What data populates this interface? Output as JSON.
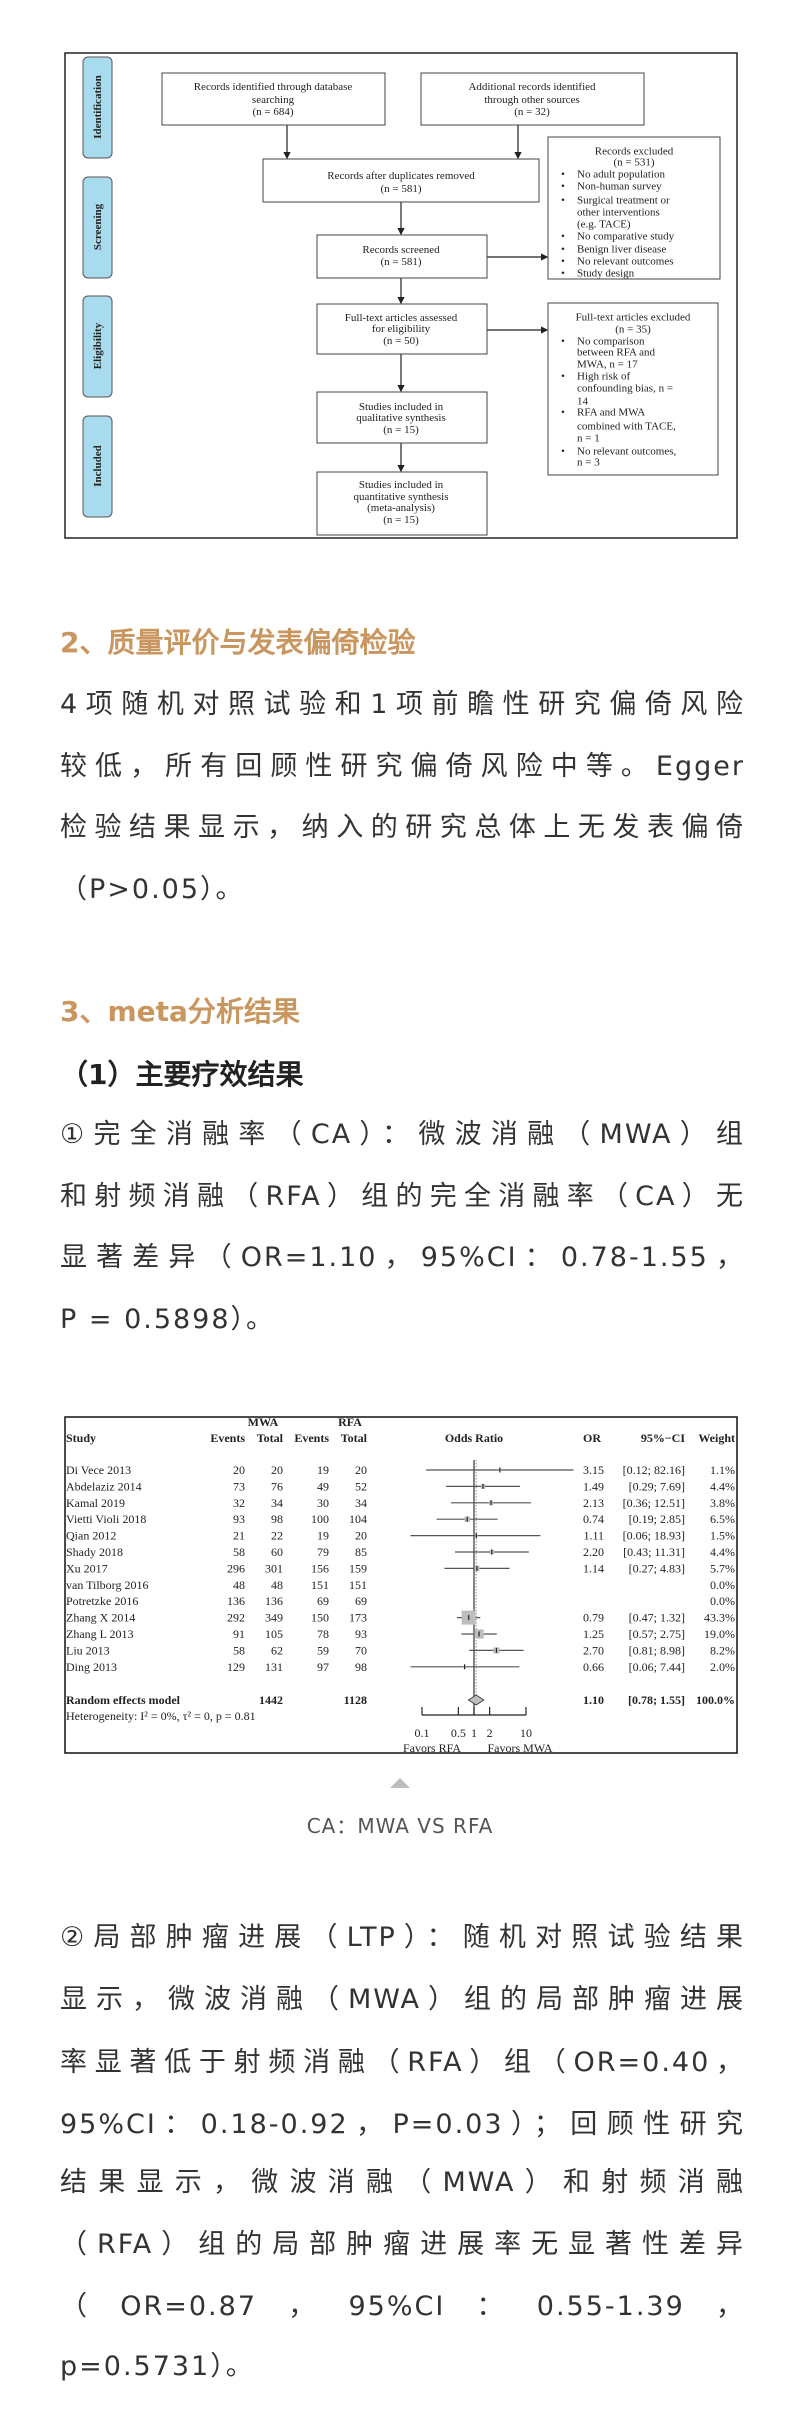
{
  "flowchart": {
    "stages": [
      "Identification",
      "Screening",
      "Eligibility",
      "Included"
    ],
    "db_search": [
      "Records identified through database",
      "searching",
      "(n = 684)"
    ],
    "other_sources": [
      "Additional records identified",
      "through other sources",
      "(n = 32)"
    ],
    "duplicates_removed": [
      "Records after duplicates removed",
      "(n = 581)"
    ],
    "screened": [
      "Records screened",
      "(n = 581)"
    ],
    "records_excluded": {
      "title": [
        "Records excluded",
        "(n = 531)"
      ],
      "items": [
        [
          "No adult population"
        ],
        [
          "Non-human survey"
        ],
        [
          "Surgical treatment or",
          "other interventions",
          "(e.g. TACE)"
        ],
        [
          "No comparative study"
        ],
        [
          "Benign liver disease"
        ],
        [
          "No relevant outcomes"
        ],
        [
          "Study design"
        ]
      ]
    },
    "fulltext_assessed": [
      "Full-text articles assessed",
      "for eligibility",
      "(n = 50)"
    ],
    "fulltext_excluded": {
      "title": [
        "Full-text articles excluded",
        "(n = 35)"
      ],
      "items": [
        [
          "No comparison",
          "between RFA and",
          "MWA, n = 17"
        ],
        [
          "High risk of",
          "confounding bias, n =",
          "14"
        ],
        [
          "RFA and MWA",
          "combined with TACE,",
          "n = 1"
        ],
        [
          "No relevant outcomes,",
          "n = 3"
        ]
      ]
    },
    "qualitative": [
      "Studies included in",
      "qualitative synthesis",
      "(n = 15)"
    ],
    "quantitative": [
      "Studies included in",
      "quantitative synthesis",
      "(meta-analysis)",
      "(n = 15)"
    ],
    "bullet": "•",
    "stage_color": "#a9dbef"
  },
  "section2": {
    "heading": "2、质量评价与发表偏倚检验",
    "lines": [
      "4项随机对照试验和1项前瞻性研究偏倚风险",
      "较低，所有回顾性研究偏倚风险中等。Egger",
      "检验结果显示，纳入的研究总体上无发表偏倚",
      "（P>0.05）。"
    ]
  },
  "section3": {
    "heading": "3、meta分析结果",
    "subheading": "（1）主要疗效结果",
    "ca_lines": [
      "①完全消融率（CA）：微波消融（MWA）组",
      "和射频消融（RFA）组的完全消融率（CA）无",
      "显著差异（OR=1.10，95%CI：0.78-1.55，",
      "P = 0.5898）。"
    ],
    "caption": "CA：MWA VS RFA",
    "ltp_lines": [
      "②局部肿瘤进展（LTP）：随机对照试验结果",
      "显示，微波消融（MWA）组的局部肿瘤进展",
      "率显著低于射频消融（RFA）组（OR=0.40，",
      "95%CI：0.18-0.92，P=0.03）；回顾性研究",
      "结果显示，微波消融（MWA）和射频消融",
      "（RFA）组的局部肿瘤进展率无显著性差异",
      "（OR=0.87，95%CI：0.55-1.39，",
      "p=0.5731）。"
    ]
  },
  "colors": {
    "heading": "#c9965f",
    "body": "#333333",
    "square": "#bdbdbd"
  },
  "chart_data": {
    "type": "table",
    "headers": {
      "group1": "MWA",
      "group2": "RFA",
      "study": "Study",
      "events": "Events",
      "total": "Total",
      "plot": "Odds Ratio",
      "or": "OR",
      "ci": "95%−CI",
      "weight": "Weight"
    },
    "studies": [
      {
        "study": "Di Vece  2013",
        "e1": 20,
        "n1": 20,
        "e2": 19,
        "n2": 20,
        "or": 3.15,
        "lo": 0.12,
        "hi": 82.16,
        "or_text": "3.15",
        "ci_text": "[0.12; 82.16]",
        "weight": "1.1%"
      },
      {
        "study": "Abdelaziz  2014",
        "e1": 73,
        "n1": 76,
        "e2": 49,
        "n2": 52,
        "or": 1.49,
        "lo": 0.29,
        "hi": 7.69,
        "or_text": "1.49",
        "ci_text": "[0.29;  7.69]",
        "weight": "4.4%"
      },
      {
        "study": "Kamal  2019",
        "e1": 32,
        "n1": 34,
        "e2": 30,
        "n2": 34,
        "or": 2.13,
        "lo": 0.36,
        "hi": 12.51,
        "or_text": "2.13",
        "ci_text": "[0.36; 12.51]",
        "weight": "3.8%"
      },
      {
        "study": "Vietti  Violi  2018",
        "e1": 93,
        "n1": 98,
        "e2": 100,
        "n2": 104,
        "or": 0.74,
        "lo": 0.19,
        "hi": 2.85,
        "or_text": "0.74",
        "ci_text": "[0.19;  2.85]",
        "weight": "6.5%"
      },
      {
        "study": "Qian  2012",
        "e1": 21,
        "n1": 22,
        "e2": 19,
        "n2": 20,
        "or": 1.11,
        "lo": 0.06,
        "hi": 18.93,
        "or_text": "1.11",
        "ci_text": "[0.06; 18.93]",
        "weight": "1.5%"
      },
      {
        "study": "Shady  2018",
        "e1": 58,
        "n1": 60,
        "e2": 79,
        "n2": 85,
        "or": 2.2,
        "lo": 0.43,
        "hi": 11.31,
        "or_text": "2.20",
        "ci_text": "[0.43; 11.31]",
        "weight": "4.4%"
      },
      {
        "study": "Xu  2017",
        "e1": 296,
        "n1": 301,
        "e2": 156,
        "n2": 159,
        "or": 1.14,
        "lo": 0.27,
        "hi": 4.83,
        "or_text": "1.14",
        "ci_text": "[0.27;  4.83]",
        "weight": "5.7%"
      },
      {
        "study": "van Tilborg  2016",
        "e1": 48,
        "n1": 48,
        "e2": 151,
        "n2": 151,
        "or": null,
        "lo": null,
        "hi": null,
        "or_text": "",
        "ci_text": "",
        "weight": "0.0%"
      },
      {
        "study": "Potretzke  2016",
        "e1": 136,
        "n1": 136,
        "e2": 69,
        "n2": 69,
        "or": null,
        "lo": null,
        "hi": null,
        "or_text": "",
        "ci_text": "",
        "weight": "0.0%"
      },
      {
        "study": "Zhang X  2014",
        "e1": 292,
        "n1": 349,
        "e2": 150,
        "n2": 173,
        "or": 0.79,
        "lo": 0.47,
        "hi": 1.32,
        "or_text": "0.79",
        "ci_text": "[0.47;  1.32]",
        "weight": "43.3%"
      },
      {
        "study": "Zhang L  2013",
        "e1": 91,
        "n1": 105,
        "e2": 78,
        "n2": 93,
        "or": 1.25,
        "lo": 0.57,
        "hi": 2.75,
        "or_text": "1.25",
        "ci_text": "[0.57;  2.75]",
        "weight": "19.0%"
      },
      {
        "study": "Liu  2013",
        "e1": 58,
        "n1": 62,
        "e2": 59,
        "n2": 70,
        "or": 2.7,
        "lo": 0.81,
        "hi": 8.98,
        "or_text": "2.70",
        "ci_text": "[0.81;  8.98]",
        "weight": "8.2%"
      },
      {
        "study": "Ding  2013",
        "e1": 129,
        "n1": 131,
        "e2": 97,
        "n2": 98,
        "or": 0.66,
        "lo": 0.06,
        "hi": 7.44,
        "or_text": "0.66",
        "ci_text": "[0.06;  7.44]",
        "weight": "2.0%"
      }
    ],
    "pooled": {
      "label": "Random effects model",
      "n1": 1442,
      "n2": 1128,
      "or": 1.1,
      "lo": 0.78,
      "hi": 1.55,
      "or_text": "1.10",
      "ci_text": "[0.78;  1.55]",
      "weight": "100.0%"
    },
    "heterogeneity": "Heterogeneity: I² = 0%, τ² = 0, p = 0.81",
    "x_scale": "log",
    "x_ticks": [
      0.1,
      0.5,
      1,
      2,
      10
    ],
    "x_tick_labels": [
      "0.1",
      "0.5",
      "1",
      "2",
      "10"
    ],
    "favors_left": "Favors RFA",
    "favors_right": "Favors MWA"
  }
}
